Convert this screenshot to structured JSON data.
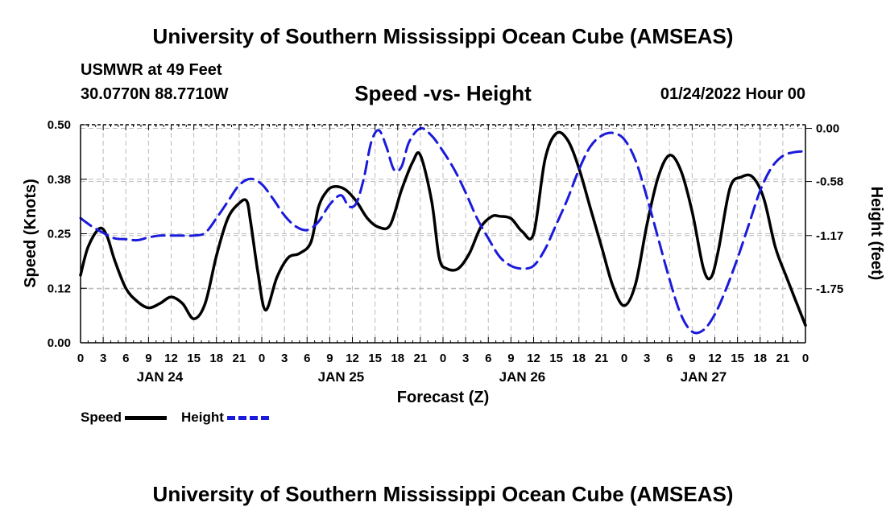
{
  "header": {
    "title": "University of Southern Mississippi Ocean Cube (AMSEAS)",
    "station": "USMWR at 49 Feet",
    "coords": "30.0770N  88.7710W",
    "subtitle": "Speed -vs- Height",
    "datetime": "01/24/2022 Hour 00"
  },
  "footer": {
    "title": "University of Southern Mississippi Ocean Cube (AMSEAS)"
  },
  "colors": {
    "speed": "#000000",
    "height": "#1a1adb",
    "grid": "#bbbbbb"
  },
  "chart_data": {
    "type": "line",
    "title": "Speed -vs- Height",
    "xlabel": "Forecast (Z)",
    "ylabel_left": "Speed (Knots)",
    "ylabel_right": "Height (feet)",
    "x_range_hours": [
      0,
      96
    ],
    "y_left_range": [
      0,
      0.5
    ],
    "y_right_range": [
      -2.34,
      0.04
    ],
    "y_left_ticks": [
      0.0,
      0.125,
      0.25,
      0.375,
      0.5
    ],
    "y_left_tick_labels": [
      "0.00",
      "0.12",
      "0.25",
      "0.38",
      "0.50"
    ],
    "y_right_ticks": [
      0.0,
      -0.58,
      -1.17,
      -1.75
    ],
    "y_right_tick_labels": [
      "0.00",
      "-0.58",
      "-1.17",
      "-1.75"
    ],
    "x_tick_step_hours": 3,
    "x_tick_labels": [
      "0",
      "3",
      "6",
      "9",
      "12",
      "15",
      "18",
      "21",
      "0",
      "3",
      "6",
      "9",
      "12",
      "15",
      "18",
      "21",
      "0",
      "3",
      "6",
      "9",
      "12",
      "15",
      "18",
      "21",
      "0",
      "3",
      "6",
      "9",
      "12",
      "15",
      "18",
      "21",
      "0"
    ],
    "date_labels": [
      {
        "label": "JAN 24",
        "hour": 10.5
      },
      {
        "label": "JAN 25",
        "hour": 34.5
      },
      {
        "label": "JAN 26",
        "hour": 58.5
      },
      {
        "label": "JAN 27",
        "hour": 82.5
      }
    ],
    "grid": true,
    "legend_position": "bottom-left",
    "series": [
      {
        "name": "Speed",
        "axis": "left",
        "style": "solid",
        "x": [
          0,
          1,
          2.5,
          3.5,
          4.5,
          6,
          7.5,
          9,
          10.5,
          12,
          13.5,
          15,
          16.5,
          18,
          19.5,
          21,
          22,
          22.5,
          23.5,
          24.5,
          26,
          27.5,
          29,
          30.5,
          31.5,
          32.5,
          33.5,
          35,
          36.5,
          38,
          39.5,
          41,
          42.5,
          44,
          45,
          46.5,
          47.5,
          48.5,
          50,
          51.5,
          53,
          54.5,
          55.5,
          57,
          58.5,
          60,
          61.5,
          63,
          64.5,
          66,
          67.5,
          69,
          70.5,
          72,
          73.5,
          75,
          76.5,
          78,
          79.5,
          81,
          82.5,
          83.5,
          84.5,
          86,
          87.5,
          89,
          90.5,
          92,
          93.5,
          96
        ],
        "values": [
          0.155,
          0.22,
          0.262,
          0.245,
          0.19,
          0.125,
          0.095,
          0.08,
          0.09,
          0.105,
          0.09,
          0.055,
          0.09,
          0.2,
          0.285,
          0.32,
          0.325,
          0.28,
          0.16,
          0.075,
          0.15,
          0.195,
          0.205,
          0.23,
          0.31,
          0.345,
          0.358,
          0.352,
          0.325,
          0.285,
          0.265,
          0.27,
          0.35,
          0.415,
          0.43,
          0.325,
          0.195,
          0.17,
          0.17,
          0.205,
          0.265,
          0.29,
          0.29,
          0.285,
          0.255,
          0.25,
          0.42,
          0.48,
          0.465,
          0.4,
          0.31,
          0.22,
          0.13,
          0.085,
          0.135,
          0.27,
          0.38,
          0.43,
          0.395,
          0.3,
          0.17,
          0.15,
          0.215,
          0.355,
          0.38,
          0.38,
          0.33,
          0.22,
          0.15,
          0.04
        ]
      },
      {
        "name": "Height",
        "axis": "right",
        "style": "dashed",
        "x": [
          0,
          1.5,
          3,
          4.5,
          6,
          7.5,
          9,
          10.5,
          12,
          13.5,
          15,
          16.5,
          18,
          19.5,
          21,
          22.5,
          24,
          25.5,
          27,
          28.5,
          30,
          31.5,
          33,
          34.5,
          35.5,
          36.5,
          37.5,
          38.5,
          39.5,
          40.5,
          41.5,
          42.5,
          43.5,
          45,
          46.5,
          48,
          49.5,
          51,
          52.5,
          54,
          55.5,
          57,
          58.5,
          60,
          61.5,
          63,
          64.5,
          66,
          67.5,
          69,
          70.5,
          72,
          73.5,
          75,
          76.5,
          78,
          79.5,
          81,
          82.5,
          84,
          85.5,
          87,
          88.5,
          90,
          91.5,
          93,
          94.5,
          96
        ],
        "values": [
          -0.98,
          -1.07,
          -1.14,
          -1.2,
          -1.21,
          -1.22,
          -1.19,
          -1.17,
          -1.17,
          -1.17,
          -1.17,
          -1.14,
          -0.98,
          -0.8,
          -0.62,
          -0.55,
          -0.61,
          -0.77,
          -0.95,
          -1.07,
          -1.11,
          -1.02,
          -0.83,
          -0.73,
          -0.85,
          -0.82,
          -0.55,
          -0.15,
          -0.02,
          -0.2,
          -0.45,
          -0.42,
          -0.15,
          0.0,
          -0.08,
          -0.25,
          -0.45,
          -0.7,
          -0.98,
          -1.2,
          -1.4,
          -1.5,
          -1.53,
          -1.5,
          -1.32,
          -1.05,
          -0.77,
          -0.45,
          -0.2,
          -0.08,
          -0.05,
          -0.12,
          -0.35,
          -0.75,
          -1.2,
          -1.65,
          -2.03,
          -2.22,
          -2.2,
          -2.03,
          -1.75,
          -1.42,
          -1.05,
          -0.68,
          -0.43,
          -0.3,
          -0.26,
          -0.25
        ]
      }
    ]
  },
  "legend": {
    "speed_label": "Speed",
    "height_label": "Height"
  }
}
